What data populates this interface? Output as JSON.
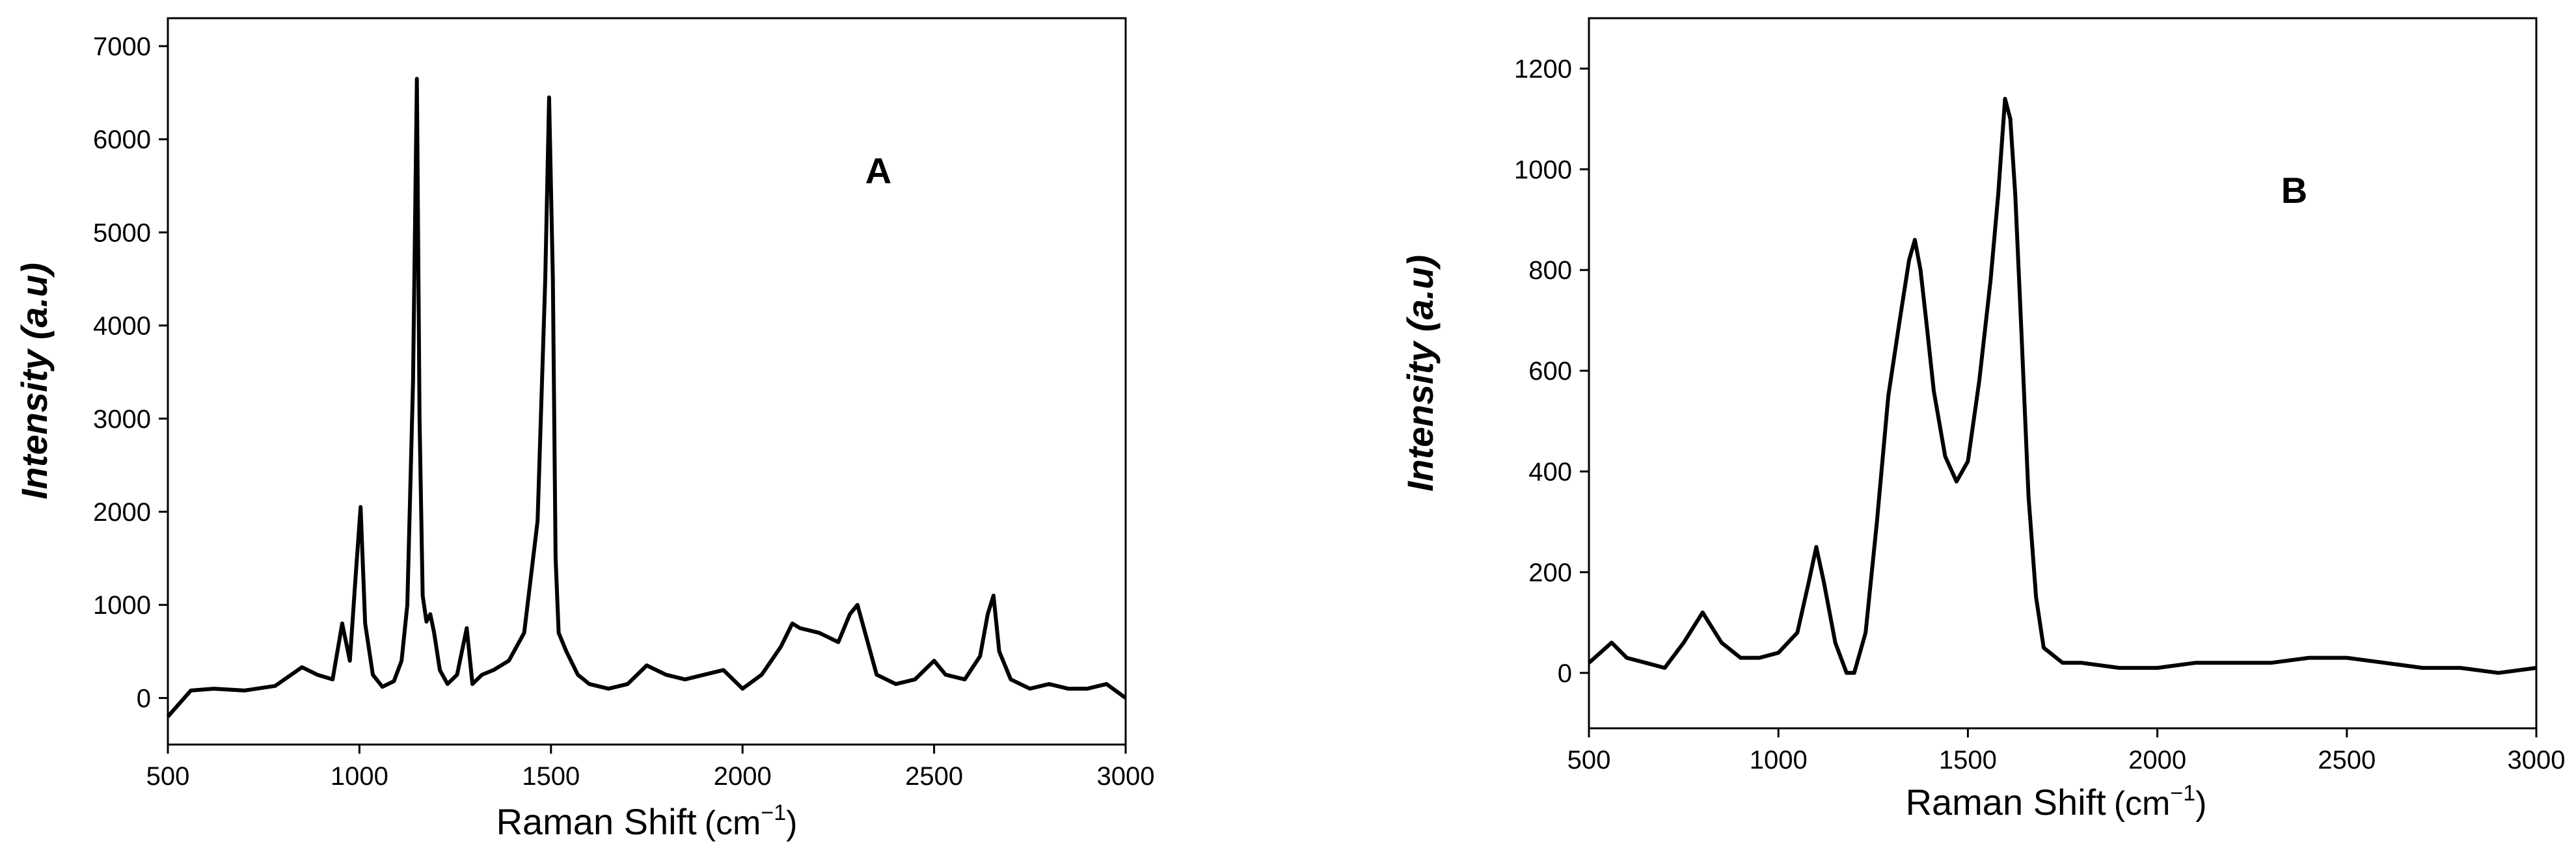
{
  "chart_data": [
    {
      "type": "line",
      "panel_label": "A",
      "xlabel": {
        "main": "Raman Shift",
        "unit": "(cm",
        "exponent": "−1",
        "close": ")"
      },
      "ylabel": "Intensity (a.u)",
      "xlim": [
        500,
        3000
      ],
      "ylim": [
        -500,
        7300
      ],
      "xticks": [
        "500",
        "1000",
        "1500",
        "2000",
        "2500",
        "3000"
      ],
      "yticks": [
        "0",
        "1000",
        "2000",
        "3000",
        "4000",
        "5000",
        "6000",
        "7000"
      ],
      "series": [
        {
          "x": [
            500,
            560,
            620,
            700,
            780,
            850,
            890,
            930,
            955,
            975,
            990,
            1003,
            1015,
            1035,
            1060,
            1090,
            1110,
            1125,
            1140,
            1150,
            1157,
            1165,
            1175,
            1185,
            1195,
            1210,
            1230,
            1255,
            1280,
            1295,
            1320,
            1350,
            1390,
            1430,
            1465,
            1485,
            1495,
            1505,
            1512,
            1520,
            1540,
            1570,
            1600,
            1650,
            1700,
            1750,
            1800,
            1850,
            1900,
            1950,
            2000,
            2050,
            2100,
            2130,
            2150,
            2200,
            2250,
            2280,
            2300,
            2320,
            2350,
            2400,
            2450,
            2500,
            2530,
            2580,
            2620,
            2640,
            2655,
            2670,
            2700,
            2750,
            2800,
            2850,
            2900,
            2950,
            3000
          ],
          "y": [
            -200,
            80,
            100,
            80,
            130,
            330,
            250,
            200,
            800,
            400,
            1300,
            2050,
            800,
            250,
            120,
            180,
            400,
            1000,
            3400,
            6650,
            3000,
            1100,
            820,
            900,
            700,
            300,
            150,
            250,
            750,
            150,
            250,
            300,
            400,
            700,
            1900,
            4500,
            6450,
            4500,
            1500,
            700,
            500,
            250,
            150,
            100,
            150,
            350,
            250,
            200,
            250,
            300,
            100,
            250,
            550,
            800,
            750,
            700,
            600,
            900,
            1000,
            700,
            250,
            150,
            200,
            400,
            250,
            200,
            450,
            900,
            1100,
            500,
            200,
            100,
            150,
            100,
            100,
            150,
            0
          ]
        }
      ]
    },
    {
      "type": "line",
      "panel_label": "B",
      "xlabel": {
        "main": "Raman Shift",
        "unit": "(cm",
        "exponent": "−1",
        "close": ")"
      },
      "ylabel": "Intensity (a.u)",
      "xlim": [
        500,
        3000
      ],
      "ylim": [
        -110,
        1300
      ],
      "xticks": [
        "500",
        "1000",
        "1500",
        "2000",
        "2500",
        "3000"
      ],
      "yticks": [
        "0",
        "200",
        "400",
        "600",
        "800",
        "1000",
        "1200"
      ],
      "series": [
        {
          "x": [
            500,
            530,
            560,
            600,
            650,
            700,
            750,
            800,
            850,
            900,
            950,
            1000,
            1050,
            1080,
            1100,
            1120,
            1150,
            1180,
            1200,
            1230,
            1260,
            1290,
            1320,
            1345,
            1360,
            1375,
            1390,
            1410,
            1440,
            1470,
            1500,
            1530,
            1560,
            1580,
            1598,
            1612,
            1625,
            1640,
            1660,
            1680,
            1700,
            1750,
            1800,
            1900,
            2000,
            2100,
            2200,
            2300,
            2400,
            2500,
            2600,
            2700,
            2800,
            2900,
            3000
          ],
          "y": [
            20,
            40,
            60,
            30,
            20,
            10,
            60,
            120,
            60,
            30,
            30,
            40,
            80,
            180,
            250,
            180,
            60,
            0,
            0,
            80,
            300,
            550,
            700,
            820,
            860,
            800,
            700,
            560,
            430,
            380,
            420,
            580,
            780,
            950,
            1140,
            1100,
            950,
            700,
            350,
            150,
            50,
            20,
            20,
            10,
            10,
            20,
            20,
            20,
            30,
            30,
            20,
            10,
            10,
            0,
            10
          ]
        }
      ]
    }
  ]
}
